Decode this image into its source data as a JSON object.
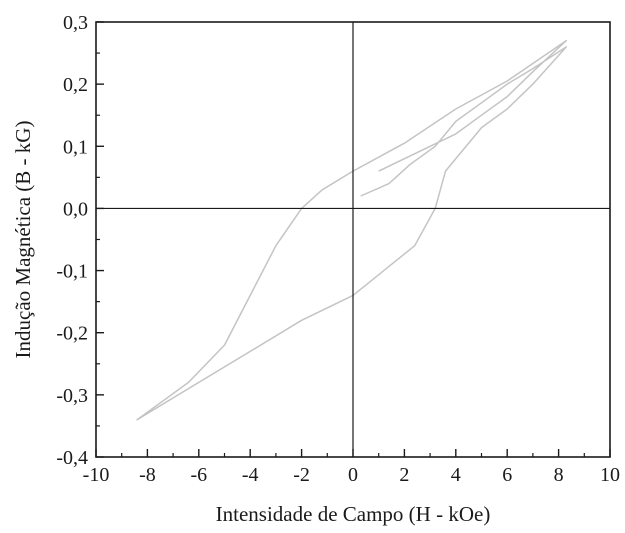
{
  "chart_data": {
    "type": "line",
    "title": "",
    "xlabel": "Intensidade de Campo (H - kOe)",
    "ylabel": "Indução Magnética (B - kG)",
    "xlim": [
      -10,
      10
    ],
    "ylim": [
      -0.4,
      0.3
    ],
    "x_ticks": [
      -10,
      -8,
      -6,
      -4,
      -2,
      0,
      2,
      4,
      6,
      8,
      10
    ],
    "x_tick_labels": [
      "-10",
      "-8",
      "-6",
      "-4",
      "-2",
      "0",
      "2",
      "4",
      "6",
      "8",
      "10"
    ],
    "y_ticks": [
      -0.4,
      -0.3,
      -0.2,
      -0.1,
      0.0,
      0.1,
      0.2,
      0.3
    ],
    "y_tick_labels": [
      "-0,4",
      "-0,3",
      "-0,2",
      "-0,1",
      "0,0",
      "0,1",
      "0,2",
      "0,3"
    ],
    "grid": false,
    "reference_lines": {
      "x": 0,
      "y": 0
    },
    "line_color": "#c4c4c4",
    "series": [
      {
        "x": [
          0.3,
          1.4,
          2.2,
          3.2,
          4.0,
          5.0,
          6.0,
          7.0,
          8.3,
          7.0,
          6.0,
          5.0,
          4.8,
          4.2,
          3.6,
          3.2,
          2.4,
          0.0,
          -2.0,
          -4.0,
          -6.0,
          -8.4,
          -6.4,
          -5.0,
          -4.0,
          -3.0,
          -2.0,
          -1.2,
          0.0,
          2.0,
          4.0,
          6.0,
          8.3,
          7.0,
          6.0,
          5.0,
          4.0,
          3.0,
          2.0,
          1.0
        ],
        "y": [
          0.02,
          0.04,
          0.07,
          0.1,
          0.14,
          0.17,
          0.2,
          0.225,
          0.26,
          0.2,
          0.16,
          0.13,
          0.12,
          0.09,
          0.06,
          0.0,
          -0.06,
          -0.14,
          -0.18,
          -0.23,
          -0.28,
          -0.34,
          -0.28,
          -0.22,
          -0.14,
          -0.06,
          0.0,
          0.03,
          0.06,
          0.105,
          0.16,
          0.205,
          0.27,
          0.22,
          0.18,
          0.15,
          0.12,
          0.1,
          0.08,
          0.06
        ]
      }
    ]
  }
}
